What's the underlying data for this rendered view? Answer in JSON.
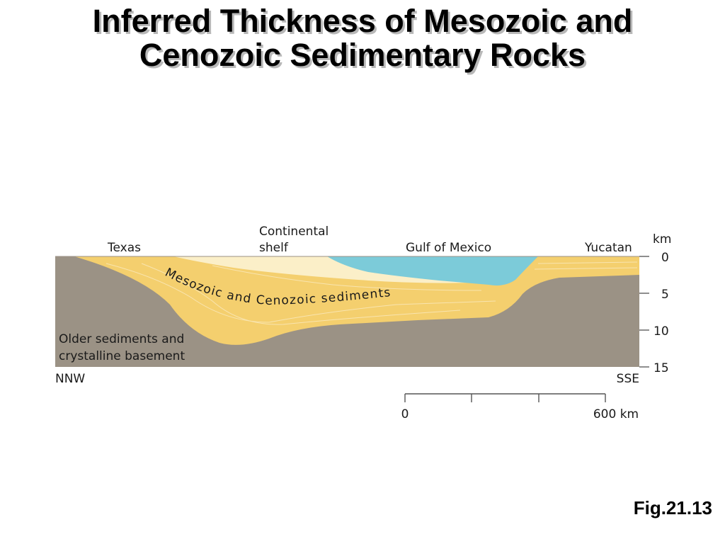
{
  "slide": {
    "title_line1": "Inferred Thickness of Mesozoic and",
    "title_line2": "Cenozoic Sedimentary Rocks",
    "figure_ref": "Fig.21.13"
  },
  "cross_section": {
    "locations": {
      "texas": "Texas",
      "continental_shelf_line1": "Continental",
      "continental_shelf_line2": "shelf",
      "gulf_of_mexico": "Gulf of Mexico",
      "yucatan": "Yucatan"
    },
    "unit_labels": {
      "sediments": "Mesozoic and Cenozoic sediments",
      "basement_line1": "Older sediments and",
      "basement_line2": "crystalline basement"
    },
    "directions": {
      "left": "NNW",
      "right": "SSE"
    },
    "depth_axis": {
      "unit": "km",
      "ticks": [
        "0",
        "5",
        "10",
        "15"
      ]
    },
    "scale_bar": {
      "start_label": "0",
      "end_label": "600 km"
    },
    "colors": {
      "basement": "#9b9285",
      "sediments": "#f4cf6e",
      "shelf_sediments": "#fbefc8",
      "water": "#7ccbd9"
    }
  }
}
